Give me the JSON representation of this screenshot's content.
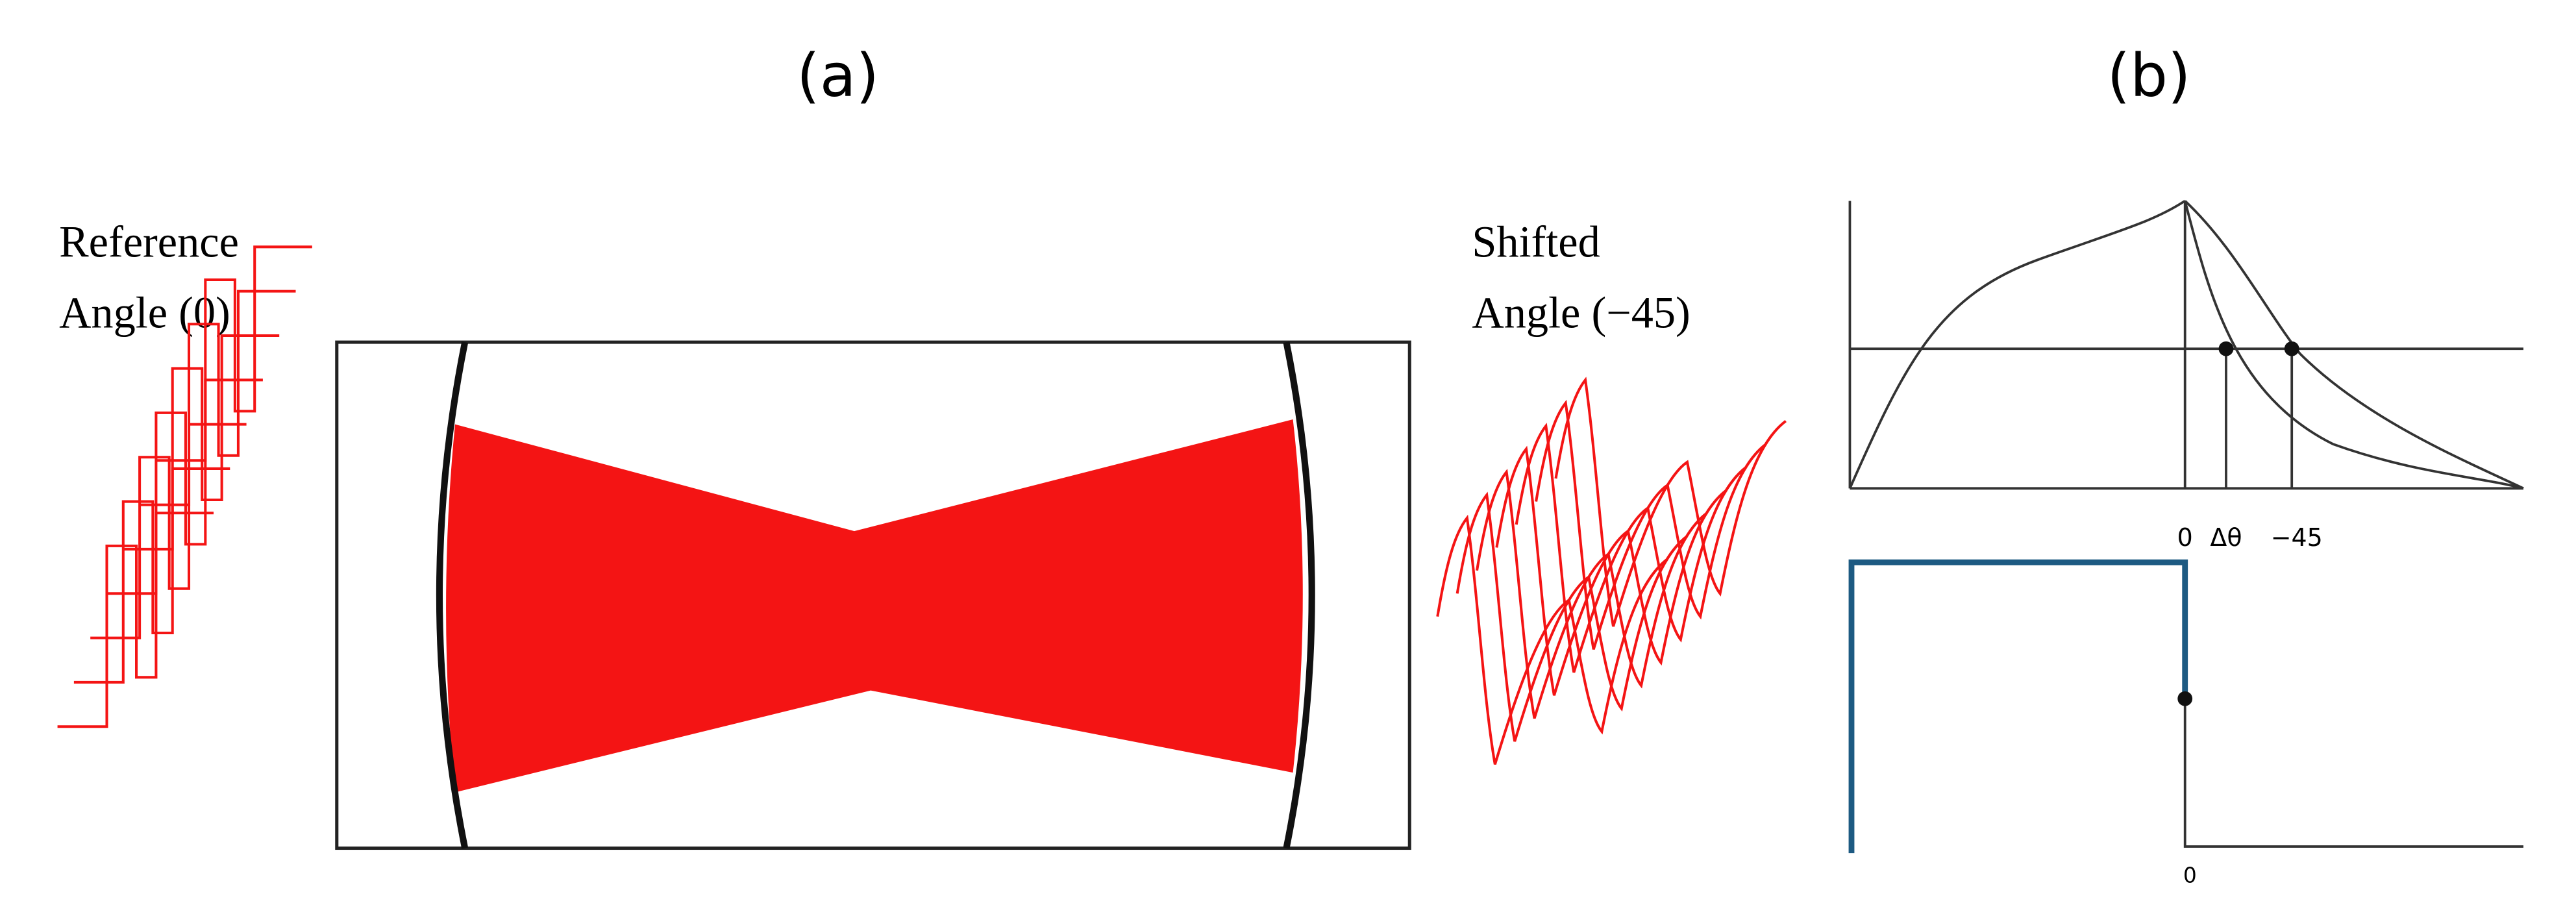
{
  "panel_a": {
    "label": "(a)",
    "reference_label": [
      "Reference",
      "Angle (0)"
    ],
    "shifted_label": [
      "Shifted",
      "Angle (−45)"
    ]
  },
  "panel_b": {
    "label": "(b)",
    "top_axis_labels": [
      "0",
      "Δθ",
      "−45"
    ],
    "bottom_axis_label": "0"
  }
}
